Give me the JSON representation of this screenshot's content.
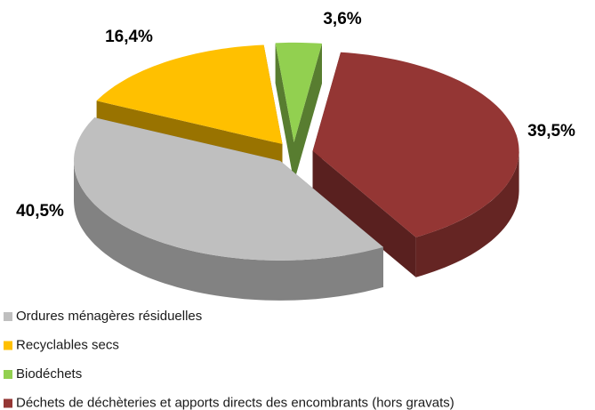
{
  "chart_data": {
    "type": "pie3d",
    "categories": [
      "Ordures ménagères résiduelles",
      "Recyclables secs",
      "Biodéchets",
      "Déchets de déchèteries et apports directs des encombrants (hors gravats)"
    ],
    "values": [
      40.5,
      16.4,
      3.6,
      39.5
    ],
    "value_labels": [
      "40,5%",
      "16,4%",
      "3,6%",
      "39,5%"
    ],
    "colors": [
      "#bfbfbf",
      "#ffc000",
      "#92d050",
      "#943634"
    ],
    "legend": "bottom-left"
  }
}
